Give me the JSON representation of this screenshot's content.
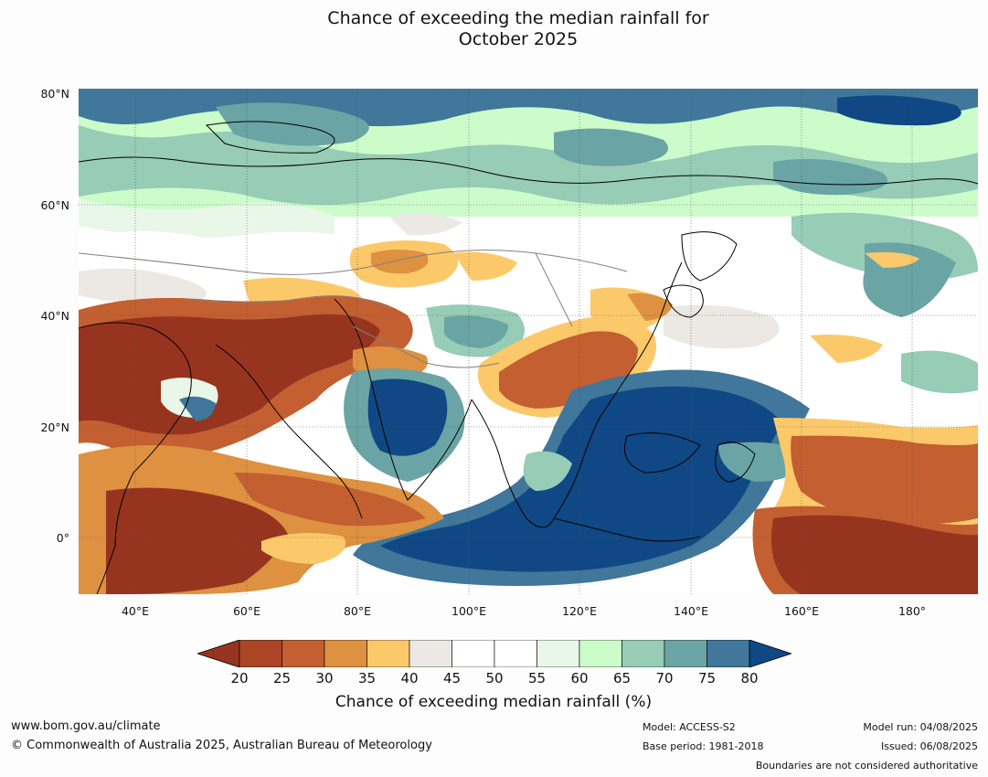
{
  "title_line1": "Chance of exceeding the median rainfall for",
  "title_line2": "October 2025",
  "map": {
    "lat_labels": [
      "80°N",
      "60°N",
      "40°N",
      "20°N",
      "0°"
    ],
    "lon_labels": [
      "40°E",
      "60°E",
      "80°E",
      "100°E",
      "120°E",
      "140°E",
      "160°E",
      "180°"
    ]
  },
  "legend": {
    "ticks": [
      "20",
      "25",
      "30",
      "35",
      "40",
      "45",
      "50",
      "55",
      "60",
      "65",
      "70",
      "75",
      "80"
    ],
    "colors": [
      "#97341f",
      "#aa4526",
      "#c35f31",
      "#de9140",
      "#fcc96a",
      "#ece9e4",
      "#ffffff",
      "#ffffff",
      "#e9f7e9",
      "#ccfcca",
      "#97ccb6",
      "#6ba4a4",
      "#40779a",
      "#0f4884"
    ],
    "label": "Chance of exceeding median rainfall (%)"
  },
  "footer": {
    "url": "www.bom.gov.au/climate",
    "copyright": "© Commonwealth of Australia 2025, Australian Bureau of Meteorology",
    "model": "Model: ACCESS-S2",
    "base_period": "Base period: 1981-2018",
    "model_run": "Model run: 04/08/2025",
    "issued": "Issued: 06/08/2025",
    "disclaimer": "Boundaries are not considered authoritative"
  }
}
